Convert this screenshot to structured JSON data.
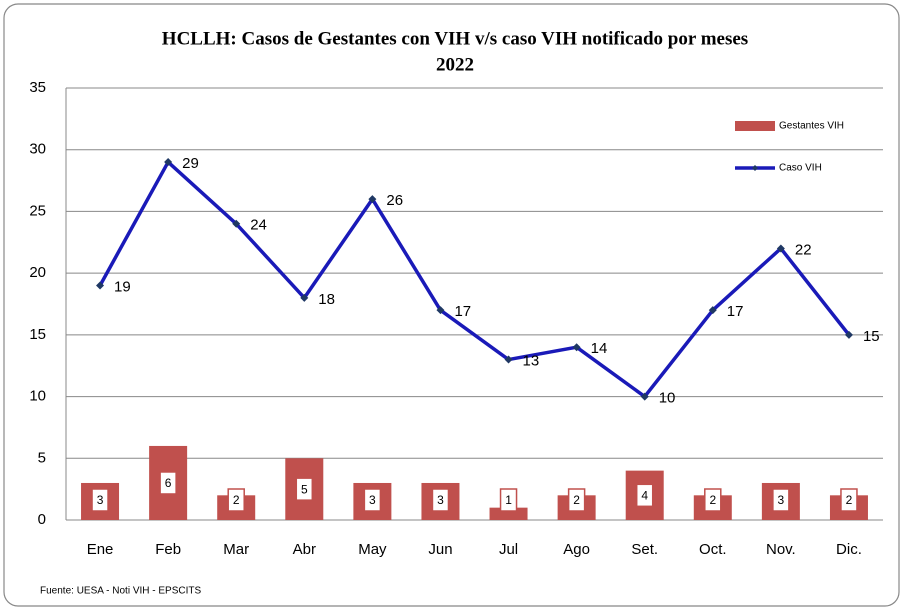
{
  "chart_data": {
    "type": "combo",
    "title": [
      "HCLLH: Casos de Gestantes con VIH v/s caso VIH notificado por meses",
      "2022"
    ],
    "categories": [
      "Ene",
      "Feb",
      "Mar",
      "Abr",
      "May",
      "Jun",
      "Jul",
      "Ago",
      "Set.",
      "Oct.",
      "Nov.",
      "Dic."
    ],
    "series": [
      {
        "name": "Gestantes VIH",
        "type": "bar",
        "color": "#c0504d",
        "values": [
          3,
          6,
          2,
          5,
          3,
          3,
          1,
          2,
          4,
          2,
          3,
          2
        ]
      },
      {
        "name": "Caso VIH",
        "type": "line",
        "color": "#1a1ab8",
        "values": [
          19,
          29,
          24,
          18,
          26,
          17,
          13,
          14,
          10,
          17,
          22,
          15
        ]
      }
    ],
    "ylim": [
      0,
      35
    ],
    "yticks": [
      0,
      5,
      10,
      15,
      20,
      25,
      30,
      35
    ],
    "grid": true,
    "legend": "upper right",
    "source": "Fuente: UESA - Noti VIH - EPSCITS"
  }
}
